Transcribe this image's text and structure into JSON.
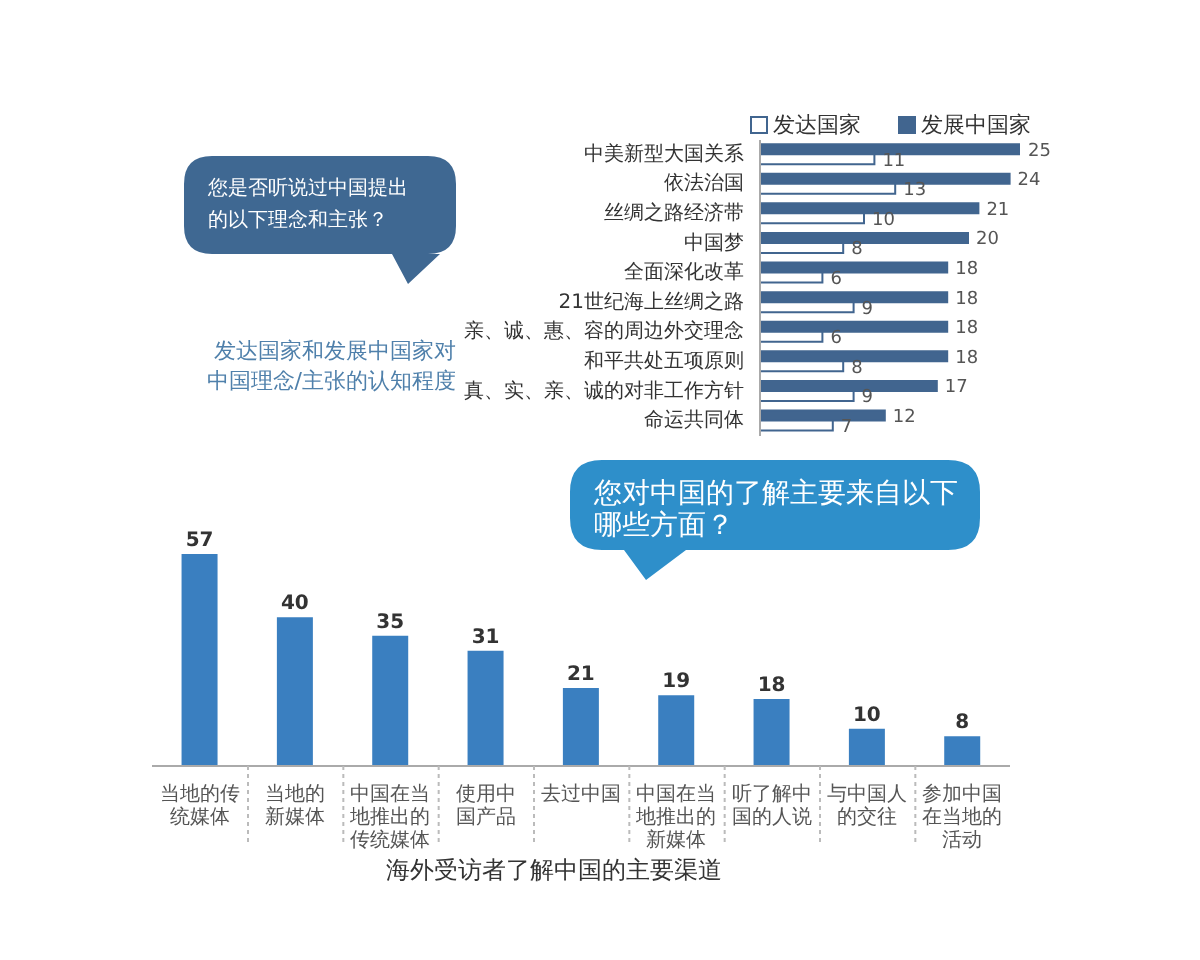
{
  "chart_data": [
    {
      "type": "bar",
      "orientation": "horizontal",
      "title": "发达国家和发展中国家对中国理念/主张的认知程度",
      "annotations": [
        "您是否听说过中国提出的以下理念和主张？"
      ],
      "categories": [
        "中美新型大国关系",
        "依法治国",
        "丝绸之路经济带",
        "中国梦",
        "全面深化改革",
        "21世纪海上丝绸之路",
        "亲、诚、惠、容的周边外交理念",
        "和平共处五项原则",
        "真、实、亲、诚的对非工作方针",
        "命运共同体"
      ],
      "series": [
        {
          "name": "发达国家",
          "color": "#ffffff",
          "values": [
            11,
            13,
            10,
            8,
            6,
            9,
            6,
            8,
            9,
            7
          ]
        },
        {
          "name": "发展中国家",
          "color": "#41658f",
          "values": [
            25,
            24,
            21,
            20,
            18,
            18,
            18,
            18,
            17,
            12
          ]
        }
      ],
      "tick_labels": "y",
      "data_labels": true,
      "legend": "top"
    },
    {
      "type": "bar",
      "title": "海外受访者了解中国的主要渠道",
      "annotations": [
        "您对中国的了解主要来自以下哪些方面？"
      ],
      "categories": [
        "当地的传统媒体",
        "当地的新媒体",
        "中国在当地推出的传统媒体",
        "使用中国产品",
        "去过中国",
        "中国在当地推出的新媒体",
        "听了解中国的人说",
        "与中国人的交往",
        "参加中国在当地的活动"
      ],
      "values": [
        57,
        40,
        35,
        31,
        21,
        19,
        18,
        10,
        8
      ],
      "color": "#3a7fc0",
      "tick_labels": "x",
      "data_labels": true
    }
  ]
}
